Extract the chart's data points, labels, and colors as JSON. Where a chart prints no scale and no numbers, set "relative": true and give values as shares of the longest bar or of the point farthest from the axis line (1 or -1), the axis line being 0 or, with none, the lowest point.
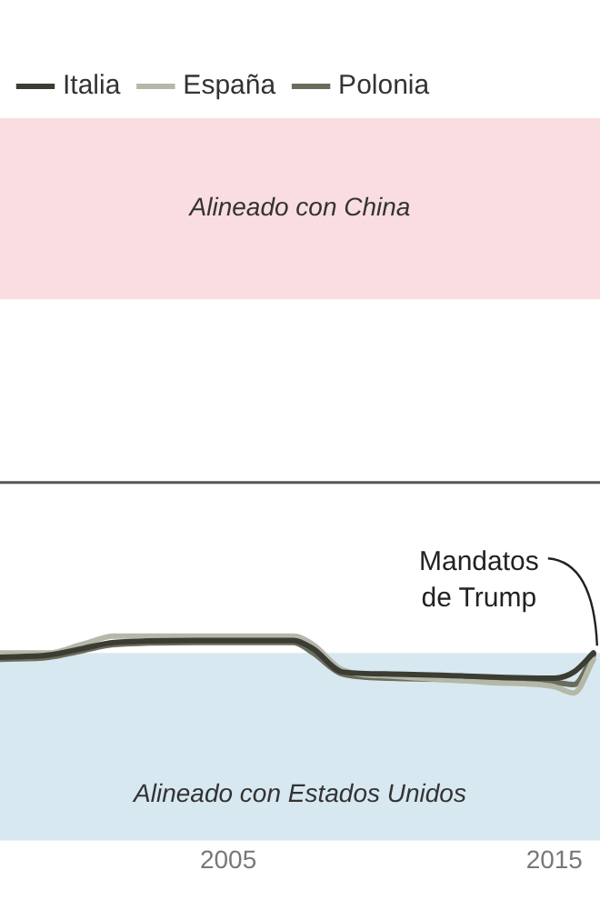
{
  "chart_data": {
    "type": "line",
    "relative": true,
    "xlim": [
      1998,
      2016.4
    ],
    "xticks": [
      2005,
      2015
    ],
    "legend": "top left",
    "grid": false,
    "marker": "none",
    "line_style": "solid",
    "series": [
      {
        "name": "Italia",
        "color": "#3b3d33",
        "x": [
          1998,
          1999.5,
          2000.5,
          2001.5,
          2004,
          2007,
          2007.6,
          2008.5,
          2010,
          2015,
          2015.6,
          2016.2
        ],
        "values": [
          -0.83,
          -0.82,
          -0.79,
          -0.76,
          -0.75,
          -0.75,
          -0.79,
          -0.9,
          -0.91,
          -0.93,
          -0.9,
          -0.81
        ]
      },
      {
        "name": "España",
        "color": "#b4b8a8",
        "x": [
          1998,
          1999.5,
          2000.5,
          2001.5,
          2004,
          2007,
          2007.6,
          2008.5,
          2010,
          2013,
          2015,
          2015.6,
          2016.2
        ],
        "values": [
          -0.81,
          -0.81,
          -0.77,
          -0.73,
          -0.73,
          -0.73,
          -0.77,
          -0.89,
          -0.92,
          -0.95,
          -0.97,
          -1.0,
          -0.84
        ]
      },
      {
        "name": "Polonia",
        "color": "#6b6d5c",
        "x": [
          1998,
          1999.5,
          2000.5,
          2001.5,
          2004,
          2007,
          2007.6,
          2008.5,
          2010,
          2015,
          2015.6,
          2016.2
        ],
        "values": [
          -0.84,
          -0.83,
          -0.8,
          -0.77,
          -0.76,
          -0.76,
          -0.81,
          -0.91,
          -0.93,
          -0.95,
          -0.96,
          -0.82
        ]
      }
    ],
    "bands": [
      {
        "axis": "y",
        "from": 0.87,
        "to": 1.73,
        "label": "Alineado con China",
        "color": "#f9dde1"
      },
      {
        "axis": "y",
        "from": -0.81,
        "to": -1.7,
        "label": "Alineado con Estados Unidos",
        "color": "#d8e8f0"
      }
    ],
    "annotations": [
      {
        "text": "Mandatos\nde Trump",
        "x": 2016.2,
        "y": -0.81
      }
    ]
  }
}
